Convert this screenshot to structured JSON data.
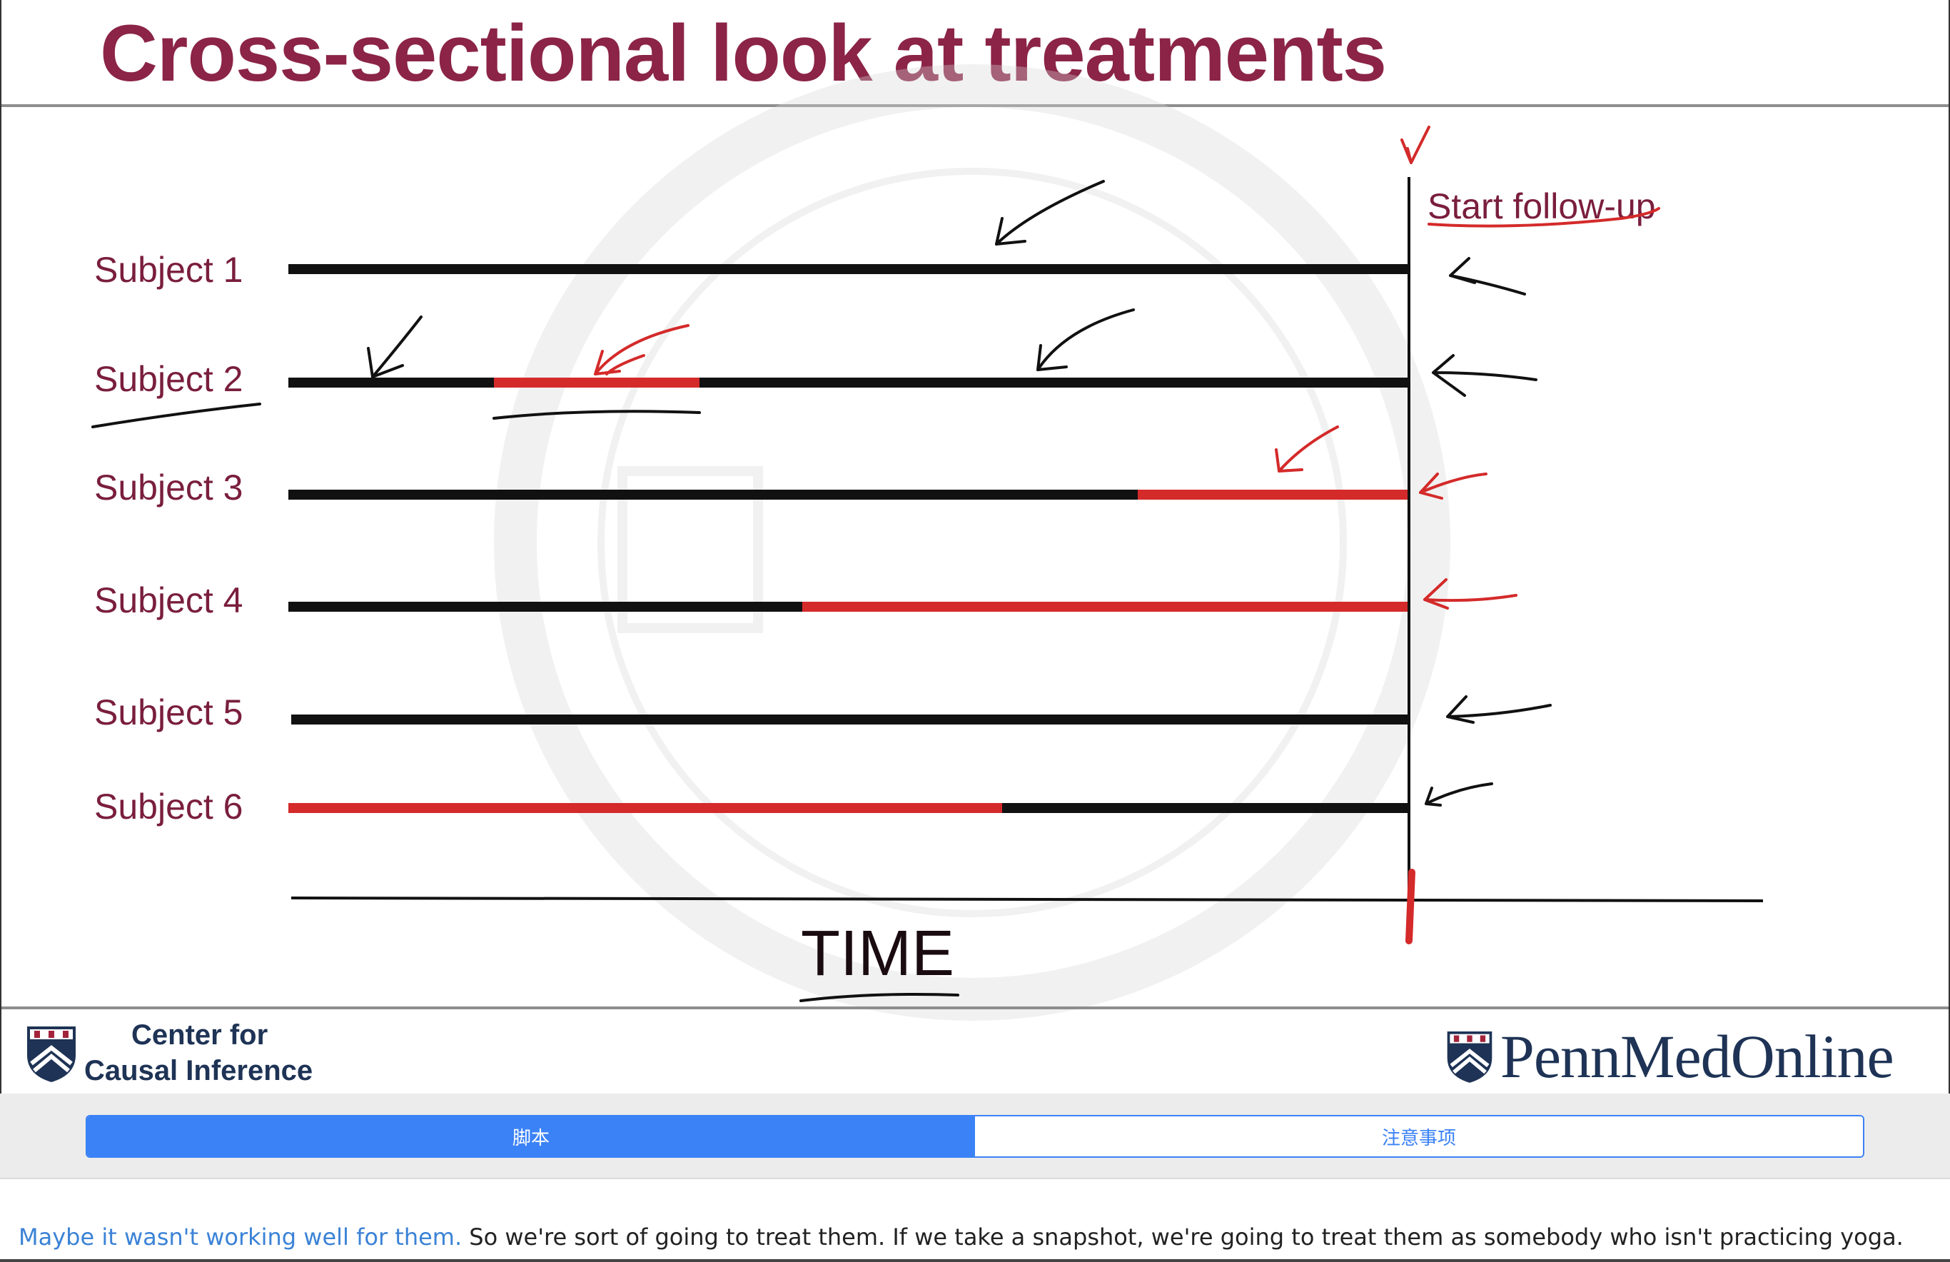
{
  "slide": {
    "title": "Cross-sectional look at treatments",
    "subjects": [
      "Subject 1",
      "Subject 2",
      "Subject 3",
      "Subject 4",
      "Subject 5",
      "Subject 6"
    ],
    "annotation_follow_up": "Start follow-up",
    "axis_label": "TIME",
    "colors": {
      "title": "#8b2447",
      "treated": "#d42a2a",
      "untreated": "#111111",
      "ink_red": "#d42a2a",
      "ink_black": "#111111"
    }
  },
  "footer": {
    "left_logo_line1": "Center for",
    "left_logo_line2": "Causal Inference",
    "right_logo_text": "PennMedOnline"
  },
  "tabs": [
    {
      "label": "脚本",
      "active": true
    },
    {
      "label": "注意事项",
      "active": false
    }
  ],
  "transcript": {
    "highlighted": "Maybe it wasn't working well for them.",
    "rest": " So we're sort of going to treat them. If we take a snapshot, we're going to treat them as somebody who isn't practicing yoga."
  }
}
